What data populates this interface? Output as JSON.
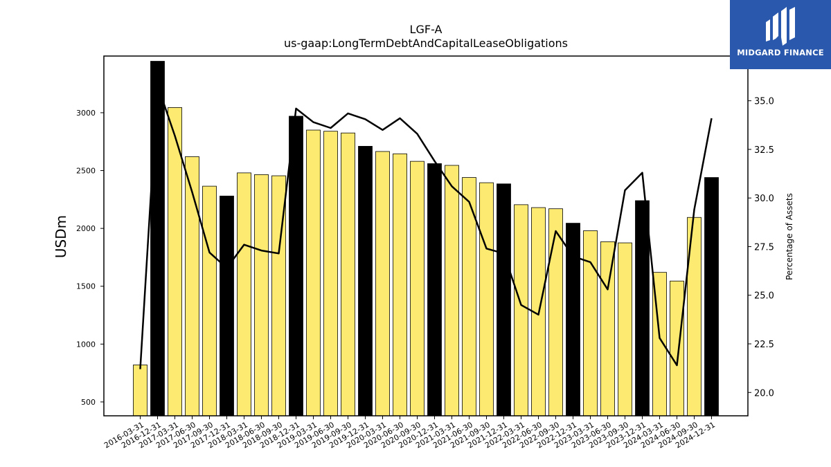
{
  "chart_data": {
    "type": "bar",
    "title": "LGF-A",
    "subtitle": "us-gaap:LongTermDebtAndCapitalLeaseObligations",
    "ylabel": "USDm",
    "y2label": "Percentage of Assets",
    "ylim": [
      380,
      3490
    ],
    "y2lim": [
      18.8,
      37.3
    ],
    "yticks": [
      500,
      1000,
      1500,
      2000,
      2500,
      3000
    ],
    "y2ticks": [
      20.0,
      22.5,
      25.0,
      27.5,
      30.0,
      32.5,
      35.0
    ],
    "colors": {
      "quarter": "#fdeb71",
      "year_end": "#000000",
      "line": "#000000"
    },
    "categories": [
      "2016-03-31",
      "2016-12-31",
      "2017-03-31",
      "2017-06-30",
      "2017-09-30",
      "2017-12-31",
      "2018-03-31",
      "2018-06-30",
      "2018-09-30",
      "2018-12-31",
      "2019-03-31",
      "2019-06-30",
      "2019-09-30",
      "2019-12-31",
      "2020-03-31",
      "2020-06-30",
      "2020-09-30",
      "2020-12-31",
      "2021-03-31",
      "2021-06-30",
      "2021-09-30",
      "2021-12-31",
      "2022-03-31",
      "2022-06-30",
      "2022-09-30",
      "2022-12-31",
      "2023-03-31",
      "2023-06-30",
      "2023-09-30",
      "2023-12-31",
      "2024-03-31",
      "2024-06-30",
      "2024-09-30",
      "2024-12-31"
    ],
    "series": [
      {
        "type": "bar",
        "values": [
          820,
          3445,
          3045,
          2620,
          2365,
          2280,
          2480,
          2465,
          2455,
          2970,
          2850,
          2840,
          2825,
          2710,
          2665,
          2645,
          2580,
          2560,
          2545,
          2440,
          2395,
          2385,
          2205,
          2180,
          2170,
          2045,
          1980,
          1885,
          1875,
          2240,
          1620,
          1545,
          2095,
          2440
        ],
        "year_end": [
          false,
          true,
          false,
          false,
          false,
          true,
          false,
          false,
          false,
          true,
          false,
          false,
          false,
          true,
          false,
          false,
          false,
          true,
          false,
          false,
          false,
          true,
          false,
          false,
          false,
          true,
          false,
          false,
          false,
          true,
          false,
          false,
          false,
          true
        ]
      },
      {
        "type": "line",
        "axis": "right",
        "values": [
          21.2,
          35.8,
          33.2,
          30.3,
          27.2,
          26.4,
          27.6,
          27.3,
          27.15,
          34.6,
          33.9,
          33.6,
          34.35,
          34.05,
          33.5,
          34.1,
          33.3,
          31.9,
          30.6,
          29.8,
          27.4,
          27.15,
          24.5,
          24.0,
          28.3,
          27.0,
          26.7,
          25.3,
          30.4,
          31.3,
          22.8,
          21.4,
          29.4,
          34.1
        ]
      }
    ]
  },
  "logo": {
    "text": "MIDGARD FINANCE"
  }
}
